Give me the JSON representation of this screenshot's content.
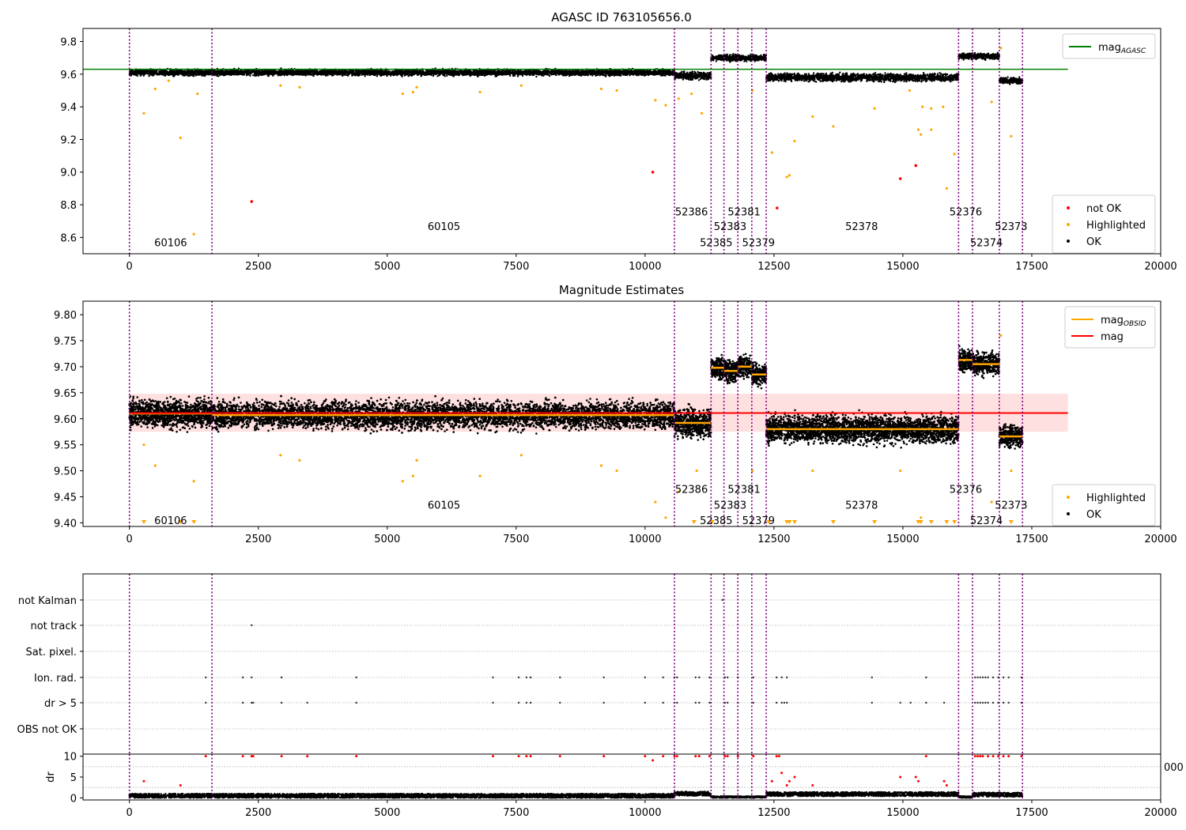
{
  "chart_data": [
    {
      "type": "scatter",
      "title": "AGASC ID 763105656.0",
      "xlim": [
        -900,
        20000
      ],
      "ylim": [
        8.5,
        9.88
      ],
      "xticks": [
        0,
        2500,
        5000,
        7500,
        10000,
        12500,
        15000,
        17500,
        20000
      ],
      "xtick_labels": [
        "0",
        "2500",
        "5000",
        "7500",
        "10000",
        "12500",
        "15000",
        "17500",
        "20000"
      ],
      "yticks": [
        8.6,
        8.8,
        9.0,
        9.2,
        9.4,
        9.6,
        9.8
      ],
      "ytick_labels": [
        "8.6",
        "8.8",
        "9.0",
        "9.2",
        "9.4",
        "9.6",
        "9.8"
      ],
      "obsid_boundaries": [
        0,
        1600,
        10570,
        11280,
        11530,
        11800,
        12070,
        12350,
        16080,
        16350,
        16870,
        17320
      ],
      "obsid_labels": [
        {
          "text": "60106",
          "x": 800,
          "y": 8.57
        },
        {
          "text": "60105",
          "x": 6100,
          "y": 8.67
        },
        {
          "text": "52386",
          "x": 10900,
          "y": 8.76
        },
        {
          "text": "52385",
          "x": 11380,
          "y": 8.57
        },
        {
          "text": "52383",
          "x": 11650,
          "y": 8.67
        },
        {
          "text": "52381",
          "x": 11920,
          "y": 8.76
        },
        {
          "text": "52379",
          "x": 12200,
          "y": 8.57
        },
        {
          "text": "52378",
          "x": 14200,
          "y": 8.67
        },
        {
          "text": "52376",
          "x": 16220,
          "y": 8.76
        },
        {
          "text": "52374",
          "x": 16620,
          "y": 8.57
        },
        {
          "text": "52373",
          "x": 17100,
          "y": 8.67
        }
      ],
      "segments_ok": [
        {
          "x0": 0,
          "x1": 1600,
          "y": 9.61,
          "spread": 0.02
        },
        {
          "x0": 1600,
          "x1": 10570,
          "y": 9.61,
          "spread": 0.02
        },
        {
          "x0": 10570,
          "x1": 11280,
          "y": 9.59,
          "spread": 0.025
        },
        {
          "x0": 11280,
          "x1": 12350,
          "y": 9.7,
          "spread": 0.02
        },
        {
          "x0": 12350,
          "x1": 16080,
          "y": 9.58,
          "spread": 0.025
        },
        {
          "x0": 16080,
          "x1": 16870,
          "y": 9.71,
          "spread": 0.02
        },
        {
          "x0": 16870,
          "x1": 17320,
          "y": 9.56,
          "spread": 0.02
        }
      ],
      "highlighted": [
        [
          280,
          9.36
        ],
        [
          500,
          9.51
        ],
        [
          760,
          9.56
        ],
        [
          990,
          9.21
        ],
        [
          1250,
          8.62
        ],
        [
          1320,
          9.48
        ],
        [
          2930,
          9.53
        ],
        [
          3300,
          9.52
        ],
        [
          5300,
          9.48
        ],
        [
          5500,
          9.49
        ],
        [
          5570,
          9.52
        ],
        [
          6800,
          9.49
        ],
        [
          7600,
          9.53
        ],
        [
          9150,
          9.51
        ],
        [
          9450,
          9.5
        ],
        [
          10200,
          9.44
        ],
        [
          10400,
          9.41
        ],
        [
          10650,
          9.45
        ],
        [
          10900,
          9.48
        ],
        [
          11100,
          9.36
        ],
        [
          12080,
          9.5
        ],
        [
          12460,
          9.12
        ],
        [
          12750,
          8.97
        ],
        [
          12800,
          8.98
        ],
        [
          12900,
          9.19
        ],
        [
          13250,
          9.34
        ],
        [
          13650,
          9.28
        ],
        [
          14450,
          9.39
        ],
        [
          15130,
          9.5
        ],
        [
          15300,
          9.26
        ],
        [
          15350,
          9.23
        ],
        [
          15380,
          9.4
        ],
        [
          15550,
          9.26
        ],
        [
          15550,
          9.39
        ],
        [
          15780,
          9.4
        ],
        [
          15850,
          8.9
        ],
        [
          16000,
          9.11
        ],
        [
          16720,
          9.43
        ],
        [
          16900,
          9.76
        ],
        [
          17100,
          9.22
        ]
      ],
      "not_ok": [
        [
          2370,
          8.82
        ],
        [
          10150,
          9.0
        ],
        [
          12560,
          8.78
        ],
        [
          14950,
          8.96
        ],
        [
          15250,
          9.04
        ]
      ],
      "agasc_mag": 9.63,
      "agasc_line_xrange": [
        0,
        18200
      ],
      "legend_top": {
        "position": "upper right",
        "entries": [
          {
            "label": "mag",
            "sub": "AGASC",
            "color": "#008000"
          }
        ]
      },
      "legend_bottom": {
        "position": "lower right",
        "entries": [
          {
            "label": "not OK",
            "color": "#ff0000"
          },
          {
            "label": "Highlighted",
            "color": "#ffa500"
          },
          {
            "label": "OK",
            "color": "#000000"
          }
        ]
      }
    },
    {
      "type": "scatter",
      "title": "Magnitude Estimates",
      "xlim": [
        -900,
        20000
      ],
      "ylim": [
        9.393,
        9.826
      ],
      "xticks": [
        0,
        2500,
        5000,
        7500,
        10000,
        12500,
        15000,
        17500,
        20000
      ],
      "xtick_labels": [
        "0",
        "2500",
        "5000",
        "7500",
        "10000",
        "12500",
        "15000",
        "17500",
        "20000"
      ],
      "yticks": [
        9.4,
        9.45,
        9.5,
        9.55,
        9.6,
        9.65,
        9.7,
        9.75,
        9.8
      ],
      "ytick_labels": [
        "9.40",
        "9.45",
        "9.50",
        "9.55",
        "9.60",
        "9.65",
        "9.70",
        "9.75",
        "9.80"
      ],
      "obsid_boundaries": [
        0,
        1600,
        10570,
        11280,
        11530,
        11800,
        12070,
        12350,
        16080,
        16350,
        16870,
        17320
      ],
      "obsid_labels": [
        {
          "text": "60106",
          "x": 800,
          "y": 9.405
        },
        {
          "text": "60105",
          "x": 6100,
          "y": 9.435
        },
        {
          "text": "52386",
          "x": 10900,
          "y": 9.465
        },
        {
          "text": "52385",
          "x": 11380,
          "y": 9.405
        },
        {
          "text": "52383",
          "x": 11650,
          "y": 9.435
        },
        {
          "text": "52381",
          "x": 11920,
          "y": 9.465
        },
        {
          "text": "52379",
          "x": 12200,
          "y": 9.405
        },
        {
          "text": "52378",
          "x": 14200,
          "y": 9.435
        },
        {
          "text": "52376",
          "x": 16220,
          "y": 9.465
        },
        {
          "text": "52374",
          "x": 16620,
          "y": 9.405
        },
        {
          "text": "52373",
          "x": 17100,
          "y": 9.435
        }
      ],
      "segments_ok": [
        {
          "x0": 0,
          "x1": 1600,
          "y": 9.61,
          "spread": 0.028
        },
        {
          "x0": 1600,
          "x1": 10570,
          "y": 9.607,
          "spread": 0.028
        },
        {
          "x0": 10570,
          "x1": 11280,
          "y": 9.592,
          "spread": 0.03
        },
        {
          "x0": 11280,
          "x1": 11530,
          "y": 9.698,
          "spread": 0.022
        },
        {
          "x0": 11530,
          "x1": 11800,
          "y": 9.692,
          "spread": 0.022
        },
        {
          "x0": 11800,
          "x1": 12070,
          "y": 9.7,
          "spread": 0.022
        },
        {
          "x0": 12070,
          "x1": 12350,
          "y": 9.685,
          "spread": 0.022
        },
        {
          "x0": 12350,
          "x1": 16080,
          "y": 9.58,
          "spread": 0.028
        },
        {
          "x0": 16080,
          "x1": 16350,
          "y": 9.713,
          "spread": 0.022
        },
        {
          "x0": 16350,
          "x1": 16870,
          "y": 9.705,
          "spread": 0.022
        },
        {
          "x0": 16870,
          "x1": 17320,
          "y": 9.566,
          "spread": 0.022
        }
      ],
      "obsid_mag": [
        {
          "x0": 0,
          "x1": 1600,
          "y": 9.61
        },
        {
          "x0": 1600,
          "x1": 10570,
          "y": 9.607
        },
        {
          "x0": 10570,
          "x1": 11280,
          "y": 9.592
        },
        {
          "x0": 11280,
          "x1": 11530,
          "y": 9.698
        },
        {
          "x0": 11530,
          "x1": 11800,
          "y": 9.692
        },
        {
          "x0": 11800,
          "x1": 12070,
          "y": 9.7
        },
        {
          "x0": 12070,
          "x1": 12350,
          "y": 9.685
        },
        {
          "x0": 12350,
          "x1": 16080,
          "y": 9.58
        },
        {
          "x0": 16080,
          "x1": 16350,
          "y": 9.713
        },
        {
          "x0": 16350,
          "x1": 16870,
          "y": 9.705
        },
        {
          "x0": 16870,
          "x1": 17320,
          "y": 9.566
        }
      ],
      "mag": 9.611,
      "mag_band": [
        9.575,
        9.648
      ],
      "mag_line_xrange": [
        0,
        18200
      ],
      "highlighted": [
        [
          280,
          9.55
        ],
        [
          500,
          9.51
        ],
        [
          1250,
          9.48
        ],
        [
          2930,
          9.53
        ],
        [
          3300,
          9.52
        ],
        [
          5300,
          9.48
        ],
        [
          5500,
          9.49
        ],
        [
          5570,
          9.52
        ],
        [
          6800,
          9.49
        ],
        [
          7600,
          9.53
        ],
        [
          9150,
          9.51
        ],
        [
          9450,
          9.5
        ],
        [
          10200,
          9.44
        ],
        [
          10400,
          9.41
        ],
        [
          10650,
          9.46
        ],
        [
          11000,
          9.5
        ],
        [
          12080,
          9.5
        ],
        [
          13250,
          9.5
        ],
        [
          14950,
          9.5
        ],
        [
          15350,
          9.41
        ],
        [
          16720,
          9.44
        ],
        [
          16900,
          9.76
        ],
        [
          17100,
          9.5
        ]
      ],
      "offscale_low": [
        280,
        990,
        1250,
        10950,
        11300,
        12400,
        12750,
        12800,
        12900,
        13650,
        14450,
        15300,
        15350,
        15550,
        15850,
        16000,
        17100
      ],
      "legend_top": {
        "position": "upper right",
        "entries": [
          {
            "label": "mag",
            "sub": "OBSID",
            "color": "#ffa500"
          },
          {
            "label": "mag",
            "sub": "",
            "color": "#ff0000"
          }
        ]
      },
      "legend_bottom": {
        "position": "lower right",
        "entries": [
          {
            "label": "Highlighted",
            "color": "#ffa500"
          },
          {
            "label": "OK",
            "color": "#000000"
          }
        ]
      }
    },
    {
      "type": "scatter",
      "title": "",
      "xlim": [
        -900,
        20000
      ],
      "categories": [
        "not Kalman",
        "not track",
        "Sat. pixel.",
        "Ion. rad.",
        "dr > 5",
        "OBS not OK"
      ],
      "obsid_boundaries": [
        0,
        1600,
        10570,
        11280,
        11530,
        11800,
        12070,
        12350,
        16080,
        16350,
        16870,
        17320
      ],
      "flags": {
        "not Kalman": [
          11500
        ],
        "not track": [
          2370
        ],
        "Sat. pixel.": [],
        "Ion. rad.": [
          1480,
          2200,
          2370,
          2950,
          4400,
          7050,
          7550,
          7700,
          7780,
          8350,
          9200,
          10000,
          10350,
          10570,
          10620,
          10980,
          11050,
          11250,
          11550,
          11600,
          11800,
          12100,
          12550,
          12650,
          12750,
          14400,
          15450,
          16400,
          16450,
          16500,
          16550,
          16600,
          16650,
          16750,
          16850,
          16950,
          17050,
          17300
        ],
        "dr > 5": [
          1480,
          2200,
          2370,
          2400,
          2950,
          3450,
          4400,
          7050,
          7550,
          7700,
          7780,
          8350,
          9200,
          10000,
          10350,
          10570,
          10620,
          10980,
          11050,
          11250,
          11550,
          11600,
          11800,
          12100,
          12550,
          12650,
          12700,
          12750,
          14400,
          14950,
          15150,
          15450,
          15800,
          16400,
          16450,
          16500,
          16550,
          16600,
          16650,
          16750,
          16850,
          16950,
          17050,
          17300
        ],
        "OBS not OK": []
      },
      "xtick_labels": [
        "0",
        "2500",
        "5000",
        "7500",
        "10000",
        "12500",
        "15000",
        "17500",
        "20000"
      ]
    },
    {
      "type": "scatter",
      "title": "",
      "xlim": [
        -900,
        20000
      ],
      "ylim": [
        -0.5,
        10.5
      ],
      "ylabel": "dr",
      "yticks": [
        0,
        5,
        10
      ],
      "ytick_labels": [
        "0",
        "5",
        "10"
      ],
      "xticks": [
        0,
        2500,
        5000,
        7500,
        10000,
        12500,
        15000,
        17500,
        20000
      ],
      "xtick_labels": [
        "0",
        "2500",
        "5000",
        "7500",
        "10000",
        "12500",
        "15000",
        "17500",
        "20000"
      ],
      "obsid_boundaries": [
        0,
        1600,
        10570,
        11280,
        11530,
        11800,
        12070,
        12350,
        16080,
        16350,
        16870,
        17320
      ],
      "segments_ok": [
        {
          "x0": 0,
          "x1": 10570,
          "y": 0.5,
          "spread": 0.5
        },
        {
          "x0": 10570,
          "x1": 11280,
          "y": 1.0,
          "spread": 0.5
        },
        {
          "x0": 11280,
          "x1": 12350,
          "y": 0.2,
          "spread": 0.2
        },
        {
          "x0": 12350,
          "x1": 16080,
          "y": 0.9,
          "spread": 0.5
        },
        {
          "x0": 16080,
          "x1": 16350,
          "y": 0.2,
          "spread": 0.2
        },
        {
          "x0": 16350,
          "x1": 17320,
          "y": 0.8,
          "spread": 0.5
        }
      ],
      "red_points": [
        [
          280,
          4
        ],
        [
          990,
          3
        ],
        [
          1480,
          10
        ],
        [
          2200,
          10
        ],
        [
          2370,
          10
        ],
        [
          2400,
          10
        ],
        [
          2950,
          10
        ],
        [
          3450,
          10
        ],
        [
          4400,
          10
        ],
        [
          7050,
          10
        ],
        [
          7550,
          10
        ],
        [
          7700,
          10
        ],
        [
          7780,
          10
        ],
        [
          8350,
          10
        ],
        [
          9200,
          10
        ],
        [
          10000,
          10
        ],
        [
          10150,
          9
        ],
        [
          10350,
          10
        ],
        [
          10570,
          10
        ],
        [
          10620,
          10
        ],
        [
          10980,
          10
        ],
        [
          11050,
          10
        ],
        [
          11250,
          10
        ],
        [
          11550,
          10
        ],
        [
          11600,
          10
        ],
        [
          11800,
          10
        ],
        [
          12100,
          10
        ],
        [
          12460,
          4
        ],
        [
          12550,
          10
        ],
        [
          12600,
          10
        ],
        [
          12650,
          6
        ],
        [
          12750,
          3
        ],
        [
          12800,
          4
        ],
        [
          12900,
          5
        ],
        [
          13250,
          3
        ],
        [
          14950,
          5
        ],
        [
          15250,
          5
        ],
        [
          15300,
          4
        ],
        [
          15450,
          10
        ],
        [
          15800,
          4
        ],
        [
          15850,
          3
        ],
        [
          16400,
          10
        ],
        [
          16450,
          10
        ],
        [
          16500,
          10
        ],
        [
          16550,
          10
        ],
        [
          16650,
          10
        ],
        [
          16750,
          10
        ],
        [
          16850,
          10
        ],
        [
          16950,
          10
        ],
        [
          17050,
          10
        ],
        [
          17300,
          10
        ]
      ]
    }
  ]
}
